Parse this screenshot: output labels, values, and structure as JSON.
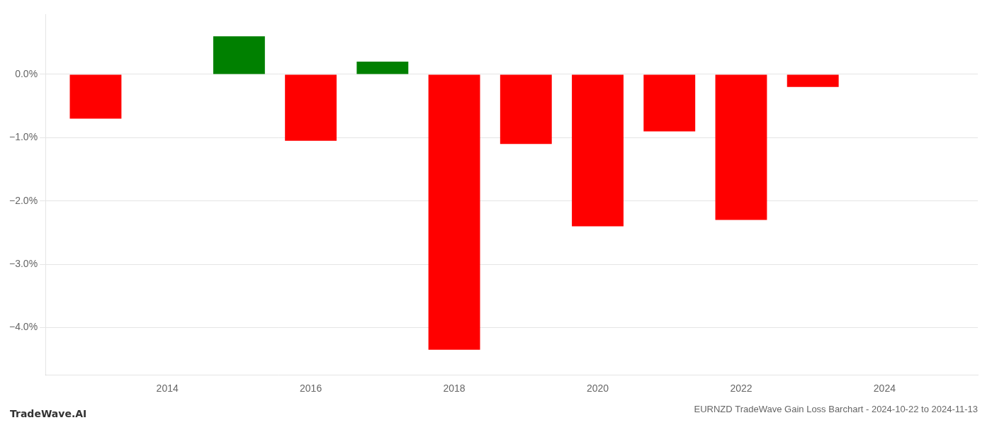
{
  "chart_data": {
    "type": "bar",
    "title": "EURNZD TradeWave Gain Loss Barchart - 2024-10-22 to 2024-11-13",
    "annotations": [
      "TradeWave.AI"
    ],
    "x": [
      2013,
      2015,
      2016,
      2017,
      2018,
      2019,
      2020,
      2021,
      2022,
      2023
    ],
    "values": [
      -0.7,
      0.6,
      -1.05,
      0.2,
      -4.35,
      -1.1,
      -2.4,
      -0.9,
      -2.3,
      -0.2
    ],
    "colors": [
      "#ff0000",
      "#008000",
      "#ff0000",
      "#008000",
      "#ff0000",
      "#ff0000",
      "#ff0000",
      "#ff0000",
      "#ff0000",
      "#ff0000"
    ],
    "xlim": [
      2012.3,
      2025.3
    ],
    "xticks": [
      2014,
      2016,
      2018,
      2020,
      2022,
      2024
    ],
    "ylim": [
      -4.75,
      0.95
    ],
    "yticks": [
      {
        "value": 0.0,
        "label": "0.0%"
      },
      {
        "value": -1.0,
        "label": "−1.0%"
      },
      {
        "value": -2.0,
        "label": "−2.0%"
      },
      {
        "value": -3.0,
        "label": "−3.0%"
      },
      {
        "value": -4.0,
        "label": "−4.0%"
      }
    ],
    "grid": "y"
  }
}
